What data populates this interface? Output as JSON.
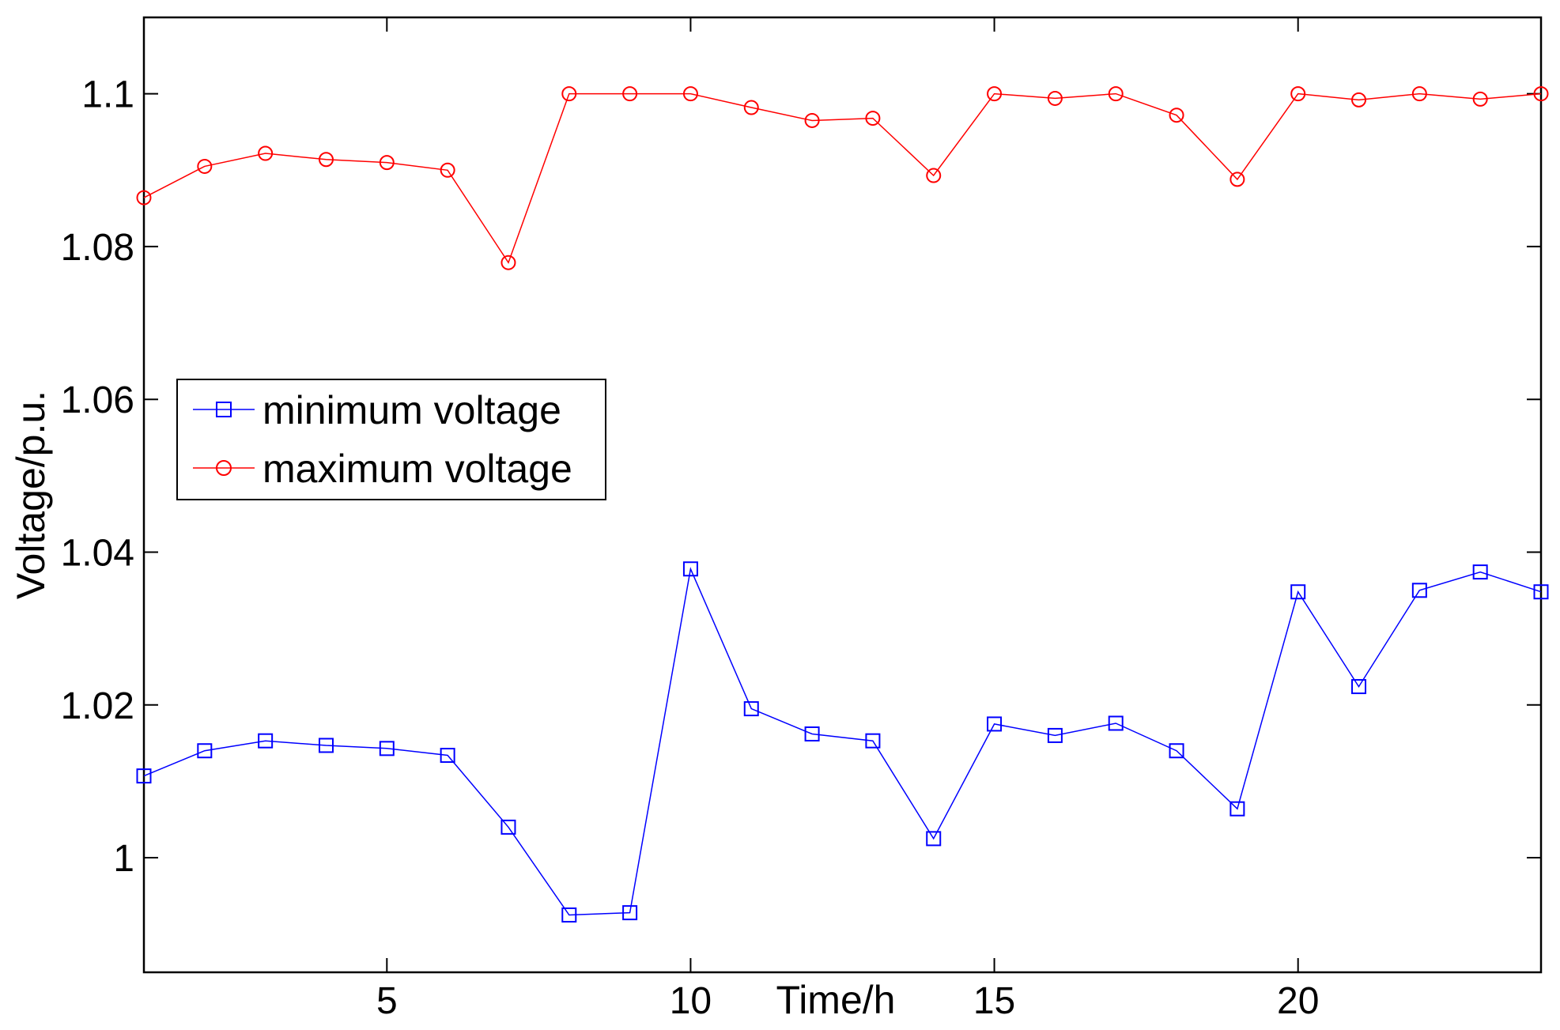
{
  "chart_data": {
    "type": "line",
    "title": "",
    "xlabel": "Time/h",
    "ylabel": "Voltage/p.u.",
    "xlim": [
      1,
      24
    ],
    "ylim": [
      0.985,
      1.11
    ],
    "xticks": [
      5,
      10,
      15,
      20
    ],
    "xtick_labels": [
      "5",
      "10",
      "15",
      "20"
    ],
    "yticks": [
      1.0,
      1.02,
      1.04,
      1.06,
      1.08,
      1.1
    ],
    "ytick_labels": [
      "1",
      "1.02",
      "1.04",
      "1.06",
      "1.08",
      "1.1"
    ],
    "grid": false,
    "legend_position": "middle-left",
    "x": [
      1,
      2,
      3,
      4,
      5,
      6,
      7,
      8,
      9,
      10,
      11,
      12,
      13,
      14,
      15,
      16,
      17,
      18,
      19,
      20,
      21,
      22,
      23,
      24
    ],
    "series": [
      {
        "name": "minimum voltage",
        "color": "#0000ff",
        "marker": "square",
        "values": [
          1.0107,
          1.014,
          1.0153,
          1.0147,
          1.0143,
          1.0134,
          1.004,
          0.9925,
          0.9928,
          1.0378,
          1.0195,
          1.0162,
          1.0153,
          1.0025,
          1.0175,
          1.016,
          1.0176,
          1.014,
          1.0064,
          1.0348,
          1.0224,
          1.035,
          1.0374,
          1.0348
        ]
      },
      {
        "name": "maximum voltage",
        "color": "#ff0000",
        "marker": "circle",
        "values": [
          1.0864,
          1.0905,
          1.0922,
          1.0914,
          1.091,
          1.09,
          1.0779,
          1.1,
          1.1,
          1.1,
          1.0982,
          1.0965,
          1.0968,
          1.0893,
          1.1,
          1.0994,
          1.1,
          1.0972,
          1.0888,
          1.1,
          1.0992,
          1.1,
          1.0993,
          1.1
        ]
      }
    ]
  }
}
